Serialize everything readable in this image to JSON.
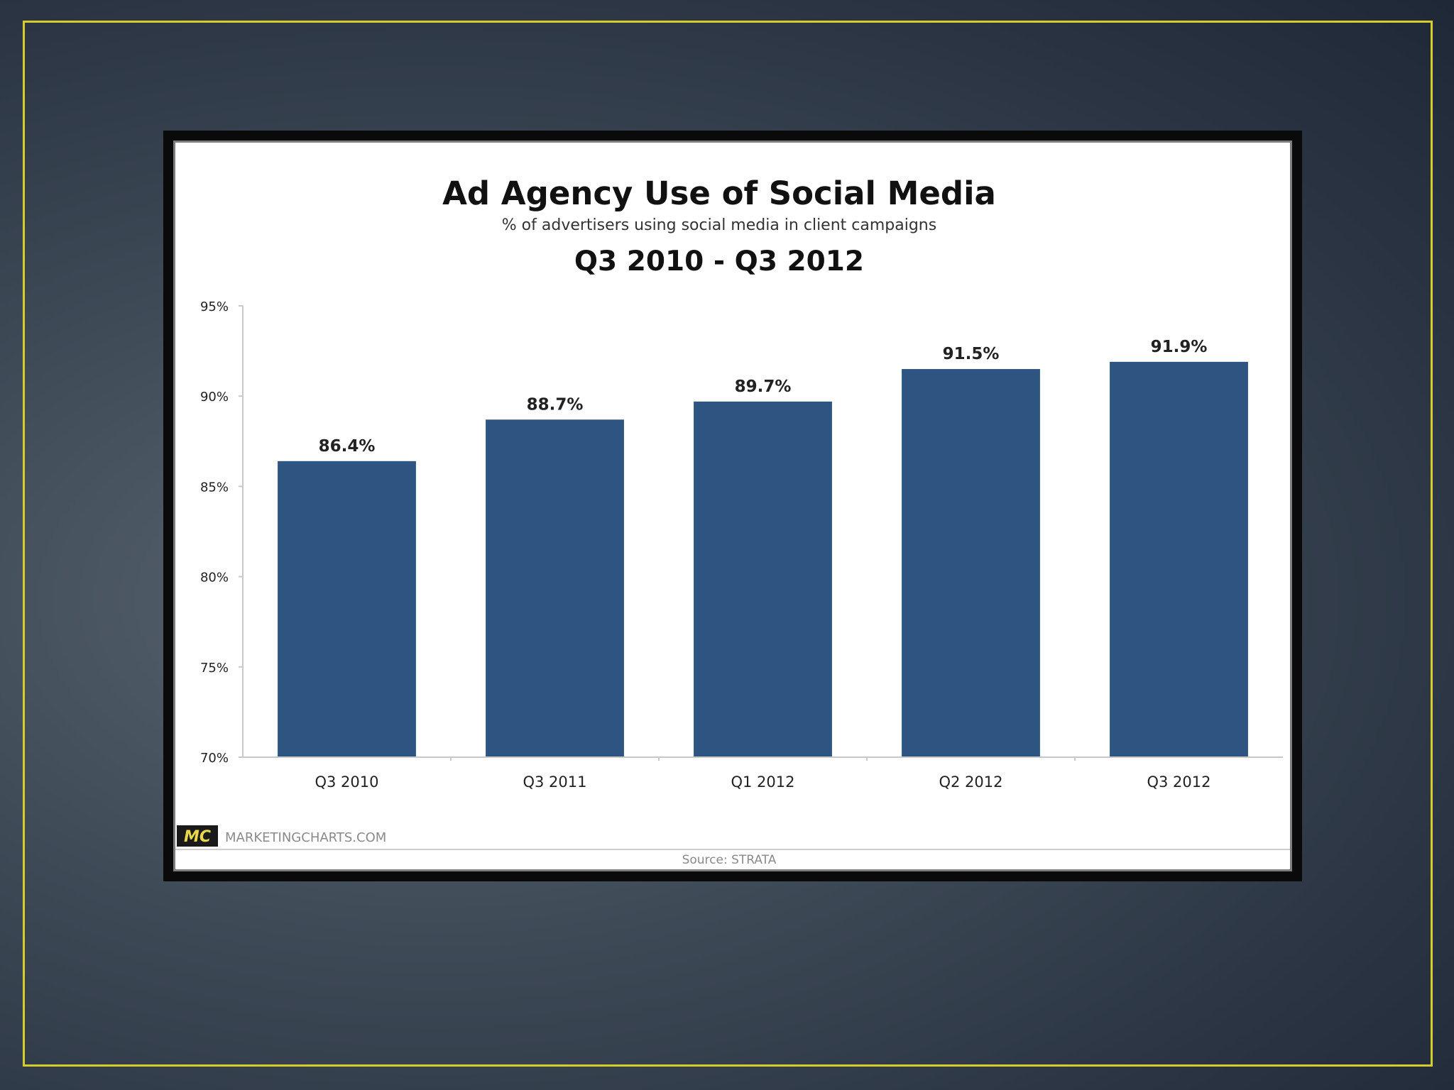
{
  "chart_data": {
    "type": "bar",
    "title": "Ad Agency Use of Social Media",
    "subtitle": "% of advertisers using social media in client campaigns",
    "period": "Q3 2010 - Q3 2012",
    "categories": [
      "Q3 2010",
      "Q3 2011",
      "Q1 2012",
      "Q2 2012",
      "Q3 2012"
    ],
    "values": [
      86.4,
      88.7,
      89.7,
      91.5,
      91.9
    ],
    "data_labels": [
      "86.4%",
      "88.7%",
      "89.7%",
      "91.5%",
      "91.9%"
    ],
    "ylim": [
      70,
      95
    ],
    "yticks": [
      70,
      75,
      80,
      85,
      90,
      95
    ],
    "ytick_labels": [
      "70%",
      "75%",
      "80%",
      "85%",
      "90%",
      "95%"
    ],
    "xlabel": "",
    "ylabel": "",
    "grid": false,
    "bar_color": "#2e5581"
  },
  "branding": {
    "logo_text": "MC",
    "site": "MARKETINGCHARTS.COM",
    "source": "Source: STRATA"
  },
  "colors": {
    "slide_border": "#d6cc2a",
    "logo_bg": "#1a1a1a",
    "logo_text": "#e8d84a"
  }
}
